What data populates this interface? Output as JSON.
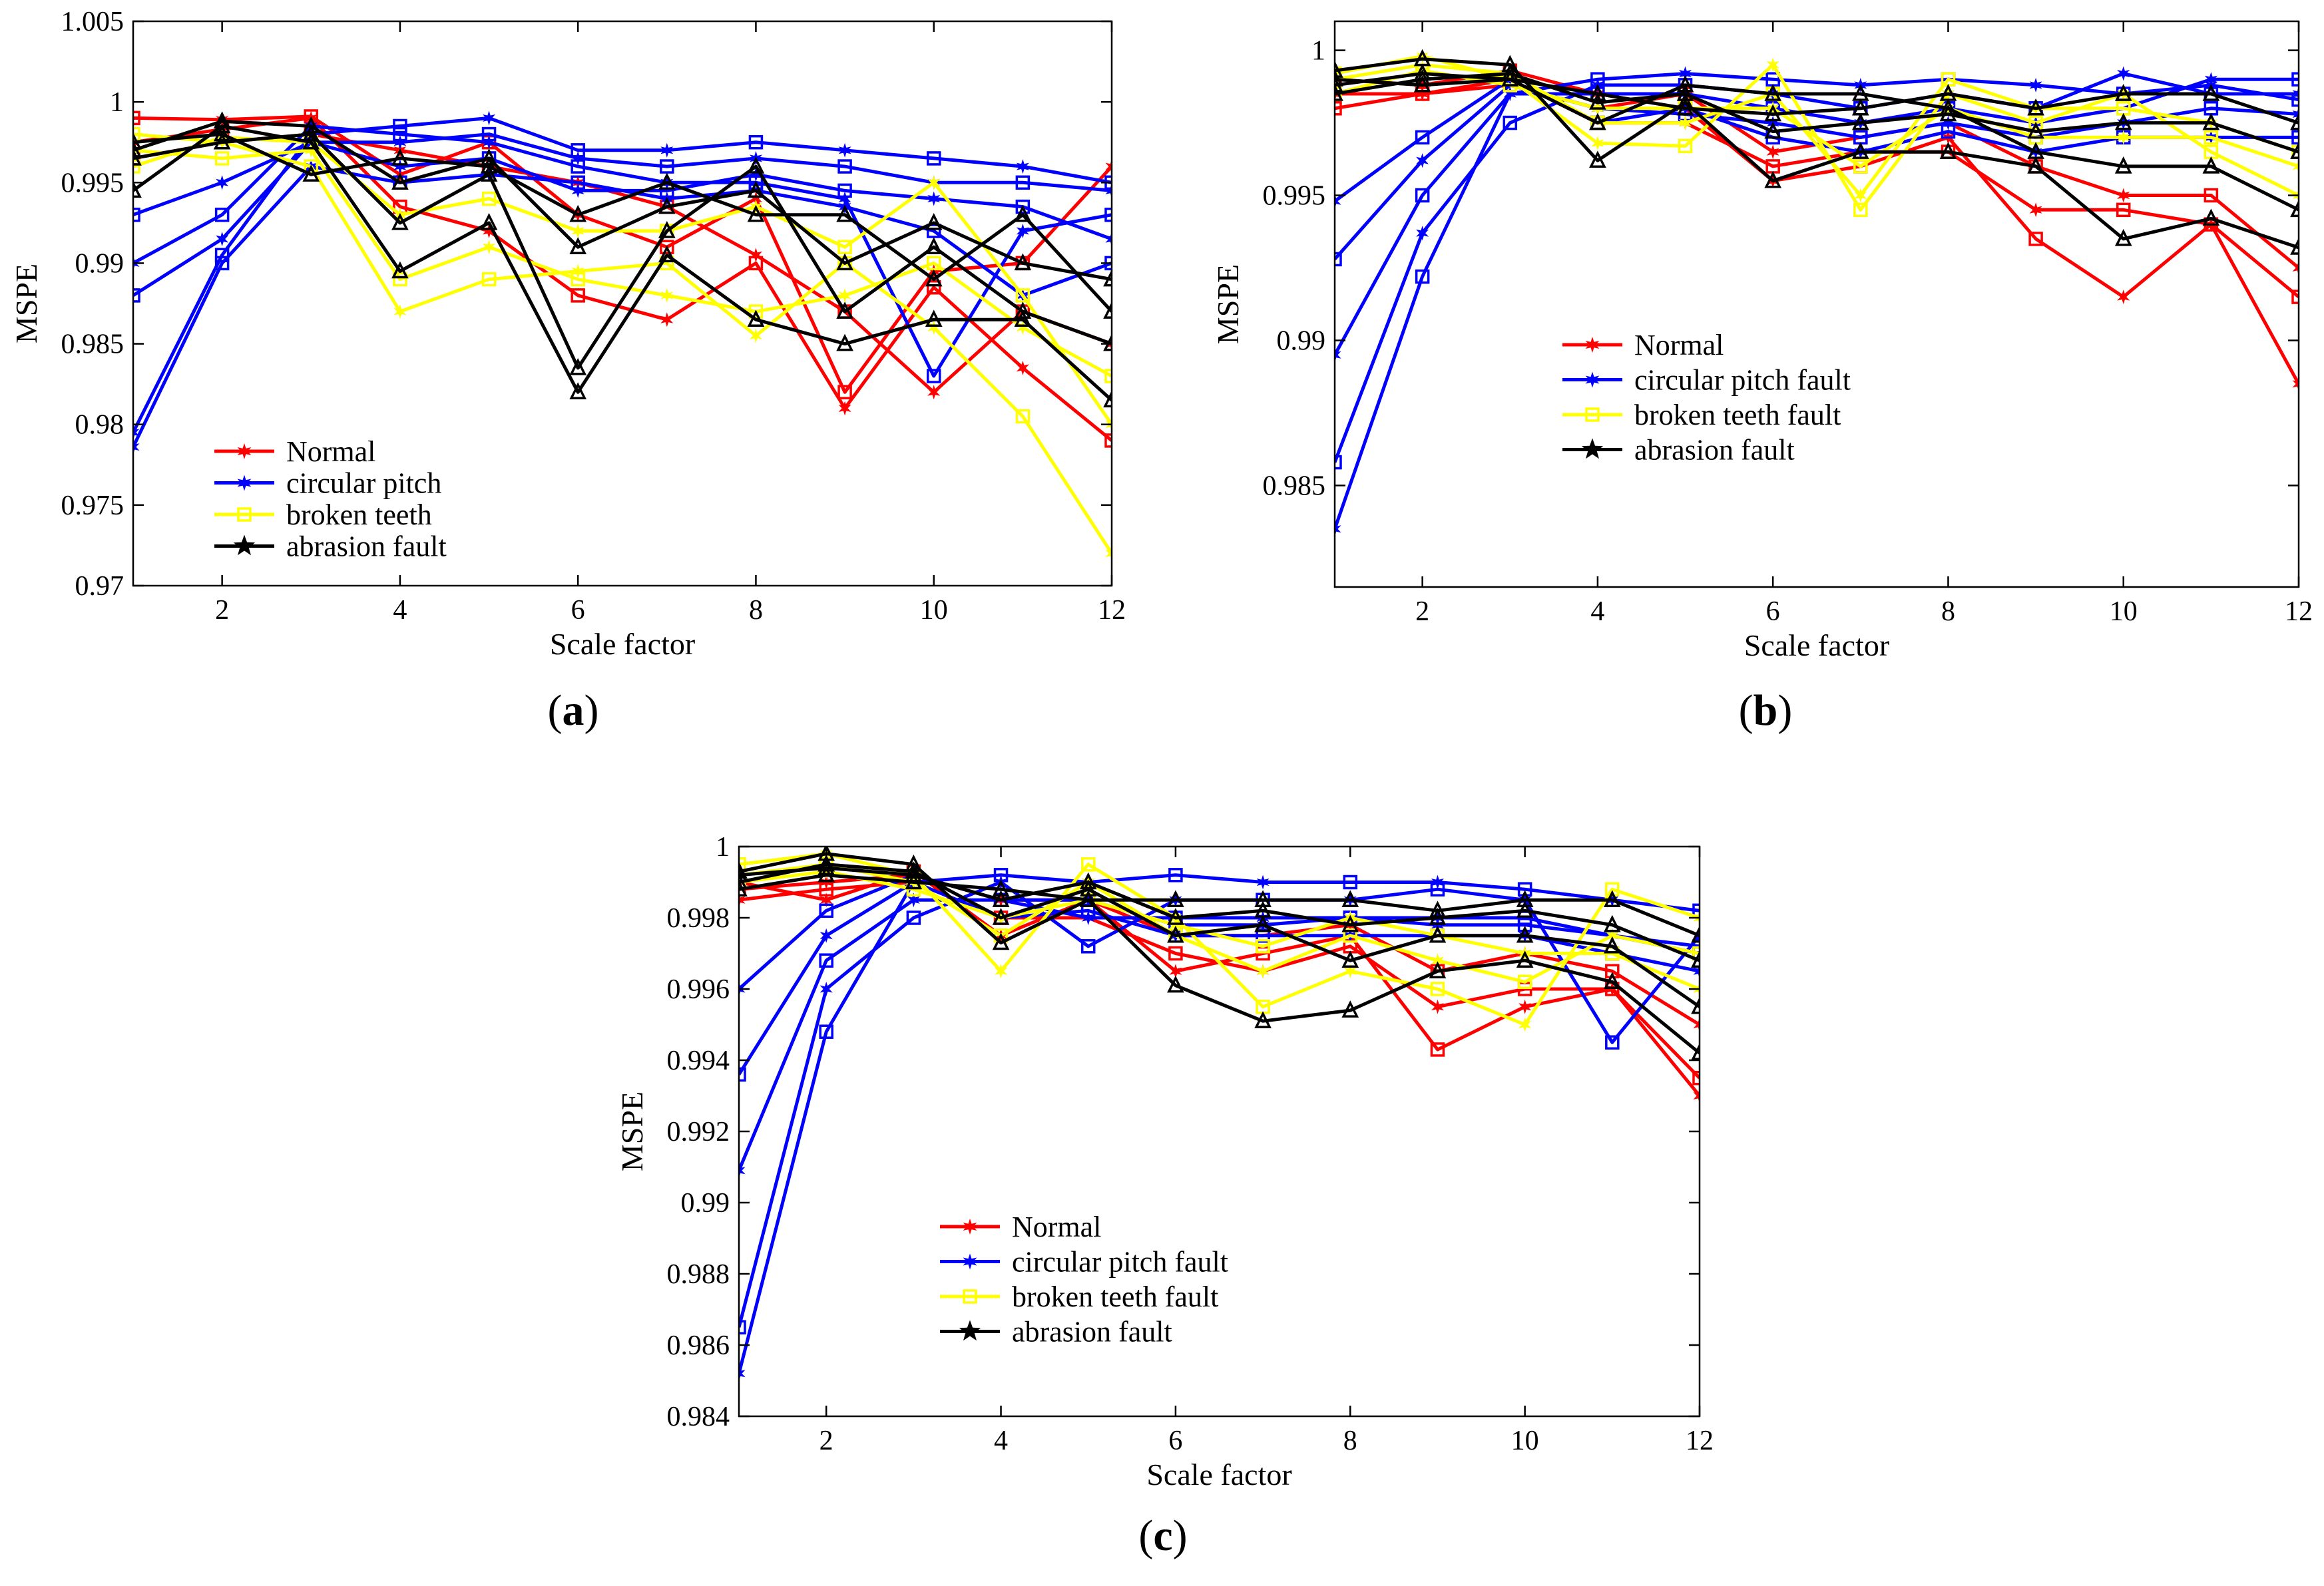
{
  "figure": {
    "colors": {
      "normal": "#ff0000",
      "circular": "#0000ff",
      "broken": "#ffff00",
      "abrasion": "#000000"
    },
    "legend_markers": {
      "normal": "star6",
      "circular": "star6",
      "broken": "square",
      "abrasion": "star5"
    }
  },
  "chart_data": [
    {
      "id": "a",
      "panel_label": "a",
      "type": "line",
      "xlabel": "Scale factor",
      "ylabel": "MSPE",
      "xlim": [
        1,
        12
      ],
      "ylim": [
        0.97,
        1.005
      ],
      "xticks": [
        2,
        4,
        6,
        8,
        10,
        12
      ],
      "xtick_labels": [
        "2",
        "4",
        "6",
        "8",
        "10",
        "12"
      ],
      "yticks": [
        0.97,
        0.975,
        0.98,
        0.985,
        0.99,
        0.995,
        1,
        1.005
      ],
      "ytick_labels": [
        "0.97",
        "0.975",
        "0.98",
        "0.985",
        "0.99",
        "0.995",
        "1",
        "1.005"
      ],
      "legend": [
        "Normal",
        "circular pitch",
        "broken teeth",
        "abrasion fault"
      ],
      "x": [
        1,
        2,
        3,
        4,
        5,
        6,
        7,
        8,
        9,
        10,
        11,
        12
      ],
      "series": [
        {
          "name": "Normal",
          "values": [
            0.999,
            0.9989,
            0.9991,
            0.9955,
            0.9975,
            0.993,
            0.991,
            0.994,
            0.982,
            0.9895,
            0.99,
            0.996
          ]
        },
        {
          "name": "Normal",
          "values": [
            0.9975,
            0.9983,
            0.999,
            0.9935,
            0.992,
            0.988,
            0.9865,
            0.99,
            0.981,
            0.9885,
            0.9835,
            0.979
          ]
        },
        {
          "name": "Normal",
          "values": [
            0.9965,
            0.9975,
            0.998,
            0.997,
            0.996,
            0.995,
            0.9935,
            0.9905,
            0.987,
            0.982,
            0.987,
            0.985
          ]
        },
        {
          "name": "circular pitch",
          "values": [
            0.9795,
            0.9905,
            0.998,
            0.9985,
            0.999,
            0.997,
            0.997,
            0.9975,
            0.997,
            0.9965,
            0.996,
            0.995
          ]
        },
        {
          "name": "circular pitch",
          "values": [
            0.988,
            0.9915,
            0.9975,
            0.9975,
            0.998,
            0.9965,
            0.996,
            0.9965,
            0.996,
            0.995,
            0.995,
            0.9945
          ]
        },
        {
          "name": "circular pitch",
          "values": [
            0.99,
            0.993,
            0.9985,
            0.998,
            0.9975,
            0.996,
            0.995,
            0.995,
            0.994,
            0.983,
            0.992,
            0.993
          ]
        },
        {
          "name": "circular pitch",
          "values": [
            0.993,
            0.995,
            0.9975,
            0.996,
            0.9965,
            0.9945,
            0.9945,
            0.9955,
            0.9945,
            0.994,
            0.9935,
            0.9915
          ]
        },
        {
          "name": "circular pitch",
          "values": [
            0.9786,
            0.99,
            0.996,
            0.995,
            0.9955,
            0.995,
            0.994,
            0.9945,
            0.9935,
            0.992,
            0.988,
            0.99
          ]
        },
        {
          "name": "broken teeth",
          "values": [
            0.998,
            0.9975,
            0.996,
            0.987,
            0.989,
            0.9895,
            0.99,
            0.9855,
            0.99,
            0.986,
            0.9805,
            0.972
          ]
        },
        {
          "name": "broken teeth",
          "values": [
            0.997,
            0.9965,
            0.997,
            0.989,
            0.991,
            0.989,
            0.988,
            0.987,
            0.988,
            0.99,
            0.986,
            0.983
          ]
        },
        {
          "name": "broken teeth",
          "values": [
            0.996,
            0.9978,
            0.9975,
            0.993,
            0.994,
            0.992,
            0.992,
            0.9935,
            0.991,
            0.995,
            0.988,
            0.98
          ]
        },
        {
          "name": "abrasion fault",
          "values": [
            0.9945,
            0.9985,
            0.9975,
            0.9895,
            0.9925,
            0.982,
            0.9905,
            0.9865,
            0.985,
            0.9865,
            0.9865,
            0.9815
          ]
        },
        {
          "name": "abrasion fault",
          "values": [
            0.9965,
            0.9975,
            0.998,
            0.9925,
            0.9955,
            0.9835,
            0.992,
            0.996,
            0.987,
            0.991,
            0.987,
            0.985
          ]
        },
        {
          "name": "abrasion fault",
          "values": [
            0.997,
            0.9988,
            0.9985,
            0.995,
            0.9965,
            0.991,
            0.9935,
            0.9945,
            0.99,
            0.9925,
            0.99,
            0.989
          ]
        },
        {
          "name": "abrasion fault",
          "values": [
            0.9975,
            0.998,
            0.9955,
            0.9965,
            0.996,
            0.993,
            0.995,
            0.993,
            0.993,
            0.989,
            0.993,
            0.987
          ]
        }
      ]
    },
    {
      "id": "b",
      "panel_label": "b",
      "type": "line",
      "xlabel": "Scale factor",
      "ylabel": "MSPE",
      "xlim": [
        1,
        12
      ],
      "ylim": [
        0.9815,
        1.001
      ],
      "xticks": [
        2,
        4,
        6,
        8,
        10,
        12
      ],
      "xtick_labels": [
        "2",
        "4",
        "6",
        "8",
        "10",
        "12"
      ],
      "yticks": [
        0.985,
        0.99,
        0.995,
        1
      ],
      "ytick_labels": [
        "0.985",
        "0.99",
        "0.995",
        "1"
      ],
      "legend": [
        "Normal",
        "circular pitch fault",
        "broken teeth fault",
        "abrasion fault"
      ],
      "x": [
        1,
        2,
        3,
        4,
        5,
        6,
        7,
        8,
        9,
        10,
        11,
        12
      ],
      "series": [
        {
          "name": "Normal",
          "values": [
            0.999,
            0.9988,
            0.9993,
            0.9985,
            0.998,
            0.9955,
            0.996,
            0.997,
            0.9935,
            0.9915,
            0.994,
            0.9885
          ]
        },
        {
          "name": "Normal",
          "values": [
            0.9985,
            0.9985,
            0.999,
            0.9975,
            0.9975,
            0.996,
            0.9965,
            0.9965,
            0.9945,
            0.9945,
            0.994,
            0.9915
          ]
        },
        {
          "name": "Normal",
          "values": [
            0.998,
            0.9985,
            0.9988,
            0.998,
            0.9985,
            0.9965,
            0.997,
            0.9975,
            0.996,
            0.995,
            0.995,
            0.9925
          ]
        },
        {
          "name": "circular pitch fault",
          "values": [
            0.9835,
            0.9922,
            0.9985,
            0.999,
            0.9992,
            0.999,
            0.9988,
            0.999,
            0.9988,
            0.9985,
            0.9988,
            0.9983
          ]
        },
        {
          "name": "circular pitch fault",
          "values": [
            0.9858,
            0.9937,
            0.9975,
            0.9988,
            0.9988,
            0.9985,
            0.998,
            0.9985,
            0.998,
            0.9992,
            0.9985,
            0.9985
          ]
        },
        {
          "name": "circular pitch fault",
          "values": [
            0.9895,
            0.995,
            0.9985,
            0.9985,
            0.9985,
            0.998,
            0.9975,
            0.998,
            0.9975,
            0.998,
            0.999,
            0.999
          ]
        },
        {
          "name": "circular pitch fault",
          "values": [
            0.9928,
            0.9962,
            0.9988,
            0.998,
            0.9978,
            0.9975,
            0.997,
            0.9975,
            0.997,
            0.9975,
            0.998,
            0.9978
          ]
        },
        {
          "name": "circular pitch fault",
          "values": [
            0.9948,
            0.997,
            0.999,
            0.9975,
            0.998,
            0.997,
            0.9965,
            0.9972,
            0.9965,
            0.997,
            0.997,
            0.997
          ]
        },
        {
          "name": "broken teeth fault",
          "values": [
            0.9992,
            0.9998,
            0.999,
            0.9968,
            0.9967,
            0.9995,
            0.9945,
            0.9985,
            0.9975,
            0.9985,
            0.9965,
            0.995
          ]
        },
        {
          "name": "broken teeth fault",
          "values": [
            0.999,
            0.9995,
            0.9992,
            0.9975,
            0.9975,
            0.9985,
            0.995,
            0.999,
            0.998,
            0.998,
            0.9975,
            0.9965
          ]
        },
        {
          "name": "broken teeth fault",
          "values": [
            0.9985,
            0.9993,
            0.9988,
            0.998,
            0.998,
            0.998,
            0.996,
            0.998,
            0.997,
            0.997,
            0.997,
            0.996
          ]
        },
        {
          "name": "abrasion fault",
          "values": [
            0.9993,
            0.9997,
            0.9995,
            0.9962,
            0.9982,
            0.9955,
            0.9965,
            0.9965,
            0.996,
            0.9935,
            0.9942,
            0.9932
          ]
        },
        {
          "name": "abrasion fault",
          "values": [
            0.9988,
            0.9992,
            0.999,
            0.9975,
            0.9988,
            0.9985,
            0.9985,
            0.998,
            0.9965,
            0.996,
            0.996,
            0.9945
          ]
        },
        {
          "name": "abrasion fault",
          "values": [
            0.9985,
            0.999,
            0.9992,
            0.9982,
            0.9985,
            0.9972,
            0.9975,
            0.9978,
            0.9972,
            0.9975,
            0.9975,
            0.9965
          ]
        },
        {
          "name": "abrasion fault",
          "values": [
            0.999,
            0.9988,
            0.999,
            0.9985,
            0.998,
            0.9978,
            0.998,
            0.9985,
            0.998,
            0.9985,
            0.9985,
            0.9975
          ]
        }
      ]
    },
    {
      "id": "c",
      "panel_label": "c",
      "type": "line",
      "xlabel": "Scale factor",
      "ylabel": "MSPE",
      "xlim": [
        1,
        12
      ],
      "ylim": [
        0.984,
        1.0
      ],
      "xticks": [
        2,
        4,
        6,
        8,
        10,
        12
      ],
      "xtick_labels": [
        "2",
        "4",
        "6",
        "8",
        "10",
        "12"
      ],
      "yticks": [
        0.984,
        0.986,
        0.988,
        0.99,
        0.992,
        0.994,
        0.996,
        0.998,
        1
      ],
      "ytick_labels": [
        "0.984",
        "0.986",
        "0.988",
        "0.99",
        "0.992",
        "0.994",
        "0.996",
        "0.998",
        "1"
      ],
      "legend": [
        "Normal",
        "circular pitch fault",
        "broken teeth fault",
        "abrasion fault"
      ],
      "x": [
        1,
        2,
        3,
        4,
        5,
        6,
        7,
        8,
        9,
        10,
        11,
        12
      ],
      "series": [
        {
          "name": "Normal",
          "values": [
            0.999,
            0.9985,
            0.9993,
            0.9975,
            0.9985,
            0.9965,
            0.997,
            0.9975,
            0.9943,
            0.9955,
            0.996,
            0.993
          ]
        },
        {
          "name": "Normal",
          "values": [
            0.9985,
            0.9988,
            0.999,
            0.998,
            0.998,
            0.997,
            0.9965,
            0.9972,
            0.9955,
            0.996,
            0.996,
            0.9935
          ]
        },
        {
          "name": "Normal",
          "values": [
            0.9988,
            0.999,
            0.9992,
            0.9985,
            0.9985,
            0.9975,
            0.9975,
            0.9978,
            0.9965,
            0.997,
            0.9965,
            0.995
          ]
        },
        {
          "name": "circular pitch fault",
          "values": [
            0.9852,
            0.9948,
            0.999,
            0.9992,
            0.999,
            0.9992,
            0.999,
            0.999,
            0.999,
            0.9988,
            0.9985,
            0.9982
          ]
        },
        {
          "name": "circular pitch fault",
          "values": [
            0.9865,
            0.996,
            0.998,
            0.999,
            0.9972,
            0.9985,
            0.9985,
            0.9985,
            0.9988,
            0.9985,
            0.9945,
            0.9975
          ]
        },
        {
          "name": "circular pitch fault",
          "values": [
            0.9909,
            0.9968,
            0.9985,
            0.9985,
            0.998,
            0.998,
            0.998,
            0.998,
            0.998,
            0.998,
            0.9975,
            0.997
          ]
        },
        {
          "name": "circular pitch fault",
          "values": [
            0.9936,
            0.9975,
            0.999,
            0.998,
            0.9982,
            0.9975,
            0.9975,
            0.9975,
            0.9975,
            0.9975,
            0.997,
            0.9965
          ]
        },
        {
          "name": "circular pitch fault",
          "values": [
            0.996,
            0.9982,
            0.9992,
            0.9985,
            0.9985,
            0.9978,
            0.9978,
            0.998,
            0.9978,
            0.9978,
            0.9975,
            0.9972
          ]
        },
        {
          "name": "broken teeth fault",
          "values": [
            0.9995,
            0.9998,
            0.9992,
            0.9965,
            0.9995,
            0.998,
            0.9955,
            0.9965,
            0.996,
            0.995,
            0.9988,
            0.998
          ]
        },
        {
          "name": "broken teeth fault",
          "values": [
            0.9992,
            0.9995,
            0.999,
            0.9975,
            0.999,
            0.9975,
            0.9965,
            0.9975,
            0.9968,
            0.9962,
            0.9975,
            0.997
          ]
        },
        {
          "name": "broken teeth fault",
          "values": [
            0.999,
            0.9993,
            0.9988,
            0.998,
            0.9985,
            0.9978,
            0.9972,
            0.998,
            0.9975,
            0.997,
            0.997,
            0.996
          ]
        },
        {
          "name": "abrasion fault",
          "values": [
            0.9993,
            0.9998,
            0.9995,
            0.9973,
            0.9985,
            0.9961,
            0.9951,
            0.9954,
            0.9965,
            0.9968,
            0.9962,
            0.9942
          ]
        },
        {
          "name": "abrasion fault",
          "values": [
            0.999,
            0.9995,
            0.9993,
            0.998,
            0.9988,
            0.9975,
            0.9978,
            0.9968,
            0.9975,
            0.9975,
            0.9972,
            0.9955
          ]
        },
        {
          "name": "abrasion fault",
          "values": [
            0.9992,
            0.9994,
            0.9992,
            0.9985,
            0.999,
            0.998,
            0.9982,
            0.9978,
            0.998,
            0.9982,
            0.9978,
            0.9968
          ]
        },
        {
          "name": "abrasion fault",
          "values": [
            0.9988,
            0.9992,
            0.999,
            0.9988,
            0.9985,
            0.9985,
            0.9985,
            0.9985,
            0.9982,
            0.9985,
            0.9985,
            0.9975
          ]
        }
      ]
    }
  ]
}
